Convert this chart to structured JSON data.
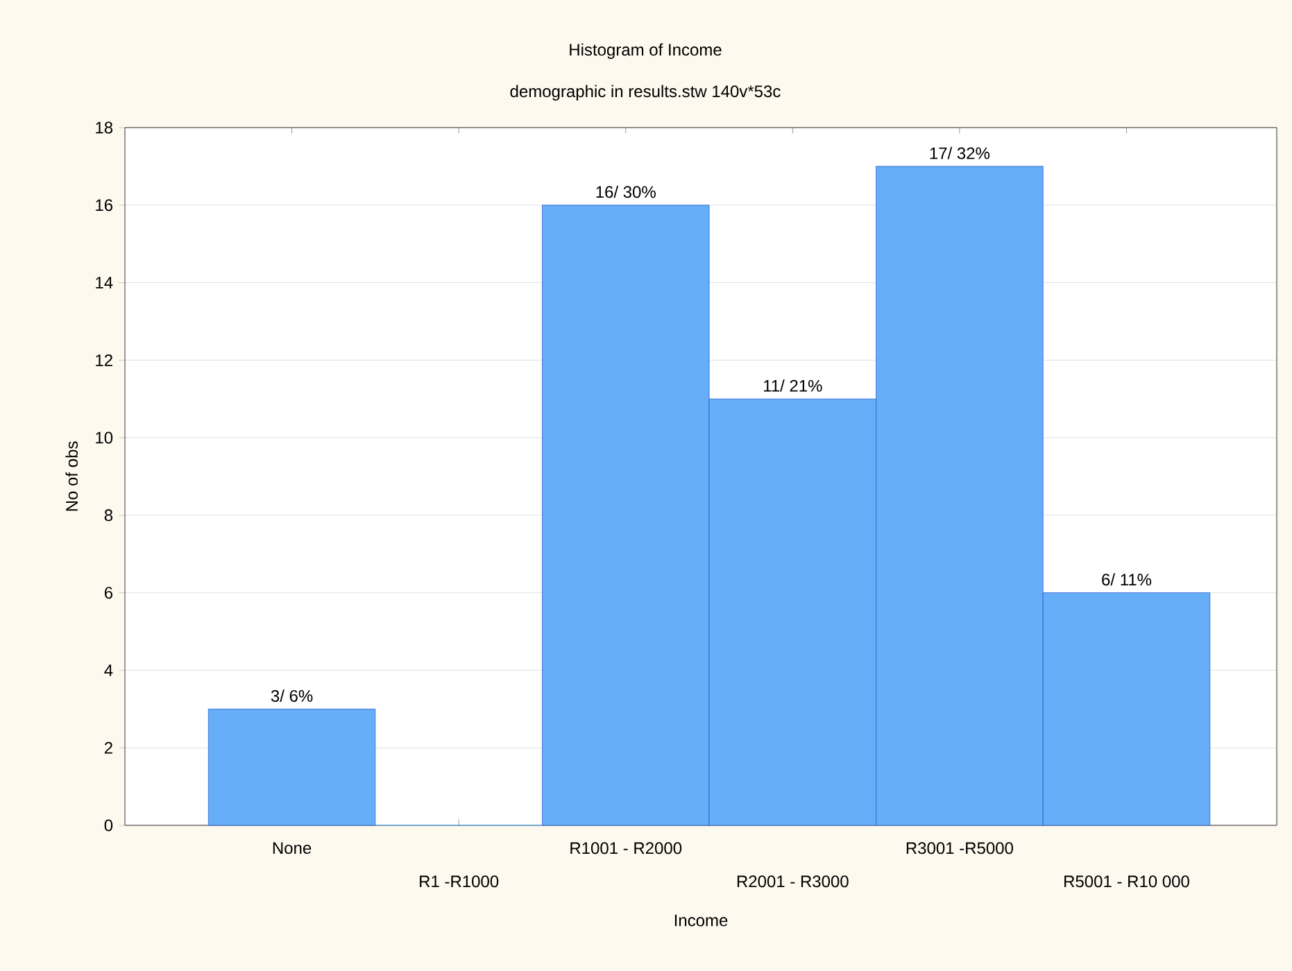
{
  "chart_data": {
    "type": "bar",
    "title": "Histogram of Income",
    "subtitle": "demographic in results.stw 140v*53c",
    "xlabel": "Income",
    "ylabel": "No of obs",
    "categories": [
      "None",
      "R1 -R1000",
      "R1001 - R2000",
      "R2001 - R3000",
      "R3001 -R5000",
      "R5001 - R10 000"
    ],
    "values": [
      3,
      0,
      16,
      11,
      17,
      6
    ],
    "value_labels": [
      "3/ 6%",
      null,
      "16/ 30%",
      "11/ 21%",
      "17/ 32%",
      "6/ 11%"
    ],
    "color": "#66aef7",
    "ylim": [
      0,
      18
    ],
    "yticks": [
      0,
      2,
      4,
      6,
      8,
      10,
      12,
      14,
      16,
      18
    ],
    "grid": "y"
  }
}
